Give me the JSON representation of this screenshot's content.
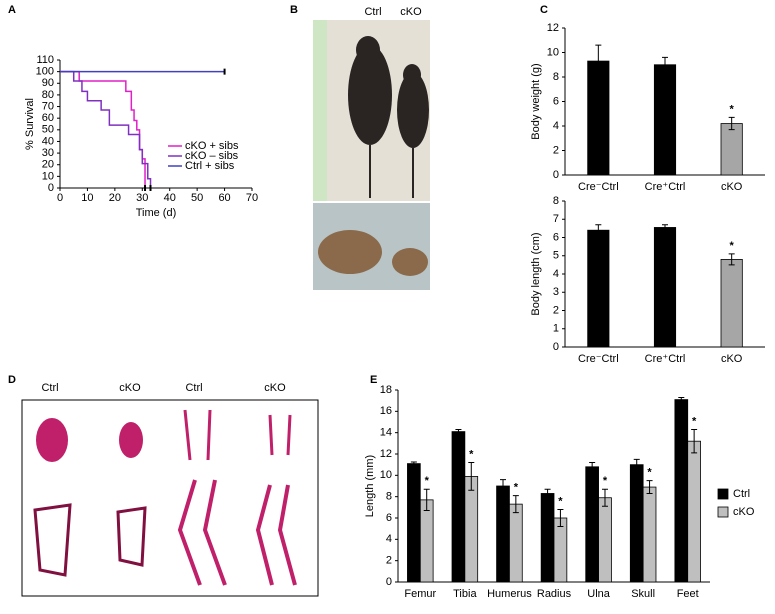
{
  "panels": [
    "A",
    "B",
    "C",
    "D",
    "E"
  ],
  "photo_b_labels": [
    "Ctrl",
    "cKO"
  ],
  "photo_d_labels": [
    "Ctrl",
    "cKO",
    "Ctrl",
    "cKO"
  ],
  "chart_data": [
    {
      "type": "line",
      "step": true,
      "ylabel": "% Survival",
      "xlabel": "Time (d)",
      "xlim": [
        0,
        70
      ],
      "xticks": [
        0,
        10,
        20,
        30,
        40,
        50,
        60,
        70
      ],
      "ylim": [
        0,
        110
      ],
      "yticks": [
        0,
        10,
        20,
        30,
        40,
        50,
        60,
        70,
        80,
        90,
        100,
        110
      ],
      "series": [
        {
          "name": "cKO + sibs",
          "color": "#e020c8",
          "x": [
            0,
            7,
            24,
            26,
            27,
            28,
            29,
            30,
            31
          ],
          "values": [
            100,
            92,
            83,
            67,
            58,
            50,
            33,
            25,
            0
          ]
        },
        {
          "name": "cKO – sibs",
          "color": "#8030c0",
          "x": [
            0,
            5,
            8,
            10,
            15,
            18,
            25,
            29,
            30,
            32,
            33
          ],
          "values": [
            100,
            92,
            83,
            75,
            67,
            54,
            46,
            33,
            21,
            8,
            0
          ]
        },
        {
          "name": "Ctrl + sibs",
          "color": "#4040c0",
          "x": [
            0,
            60
          ],
          "values": [
            100,
            100
          ]
        }
      ]
    },
    {
      "type": "bar",
      "ylabel": "Body weight (g)",
      "ylim": [
        0,
        12
      ],
      "yticks": [
        0,
        2,
        4,
        6,
        8,
        10,
        12
      ],
      "categories": [
        "Cre⁻Ctrl",
        "Cre⁺Ctrl",
        "cKO"
      ],
      "values": [
        9.3,
        9.0,
        4.2
      ],
      "errors": [
        1.3,
        0.6,
        0.5
      ],
      "colors": [
        "#000000",
        "#000000",
        "#a6a6a6"
      ],
      "annotations": [
        null,
        null,
        "*"
      ]
    },
    {
      "type": "bar",
      "ylabel": "Body length (cm)",
      "ylim": [
        0,
        8
      ],
      "yticks": [
        0,
        1,
        2,
        3,
        4,
        5,
        6,
        7,
        8
      ],
      "categories": [
        "Cre⁻Ctrl",
        "Cre⁺Ctrl",
        "cKO"
      ],
      "values": [
        6.4,
        6.55,
        4.8
      ],
      "errors": [
        0.3,
        0.15,
        0.3
      ],
      "colors": [
        "#000000",
        "#000000",
        "#a6a6a6"
      ],
      "annotations": [
        null,
        null,
        "*"
      ]
    },
    {
      "type": "bar",
      "ylabel": "Length (mm)",
      "ylim": [
        0,
        18
      ],
      "yticks": [
        0,
        2,
        4,
        6,
        8,
        10,
        12,
        14,
        16,
        18
      ],
      "categories": [
        "Femur",
        "Tibia",
        "Humerus",
        "Radius",
        "Ulna",
        "Skull",
        "Feet"
      ],
      "series": [
        {
          "name": "Ctrl",
          "color": "#000000",
          "values": [
            11.1,
            14.1,
            9.0,
            8.3,
            10.8,
            11.0,
            17.1
          ],
          "errors": [
            0.15,
            0.2,
            0.6,
            0.4,
            0.4,
            0.5,
            0.2
          ]
        },
        {
          "name": "cKO",
          "color": "#bfbfbf",
          "values": [
            7.7,
            9.9,
            7.3,
            6.0,
            7.9,
            8.9,
            13.2
          ],
          "errors": [
            1.0,
            1.3,
            0.8,
            0.8,
            0.8,
            0.6,
            1.1
          ],
          "annotations": [
            "*",
            "*",
            "*",
            "*",
            "*",
            "*",
            "*"
          ]
        }
      ]
    }
  ]
}
